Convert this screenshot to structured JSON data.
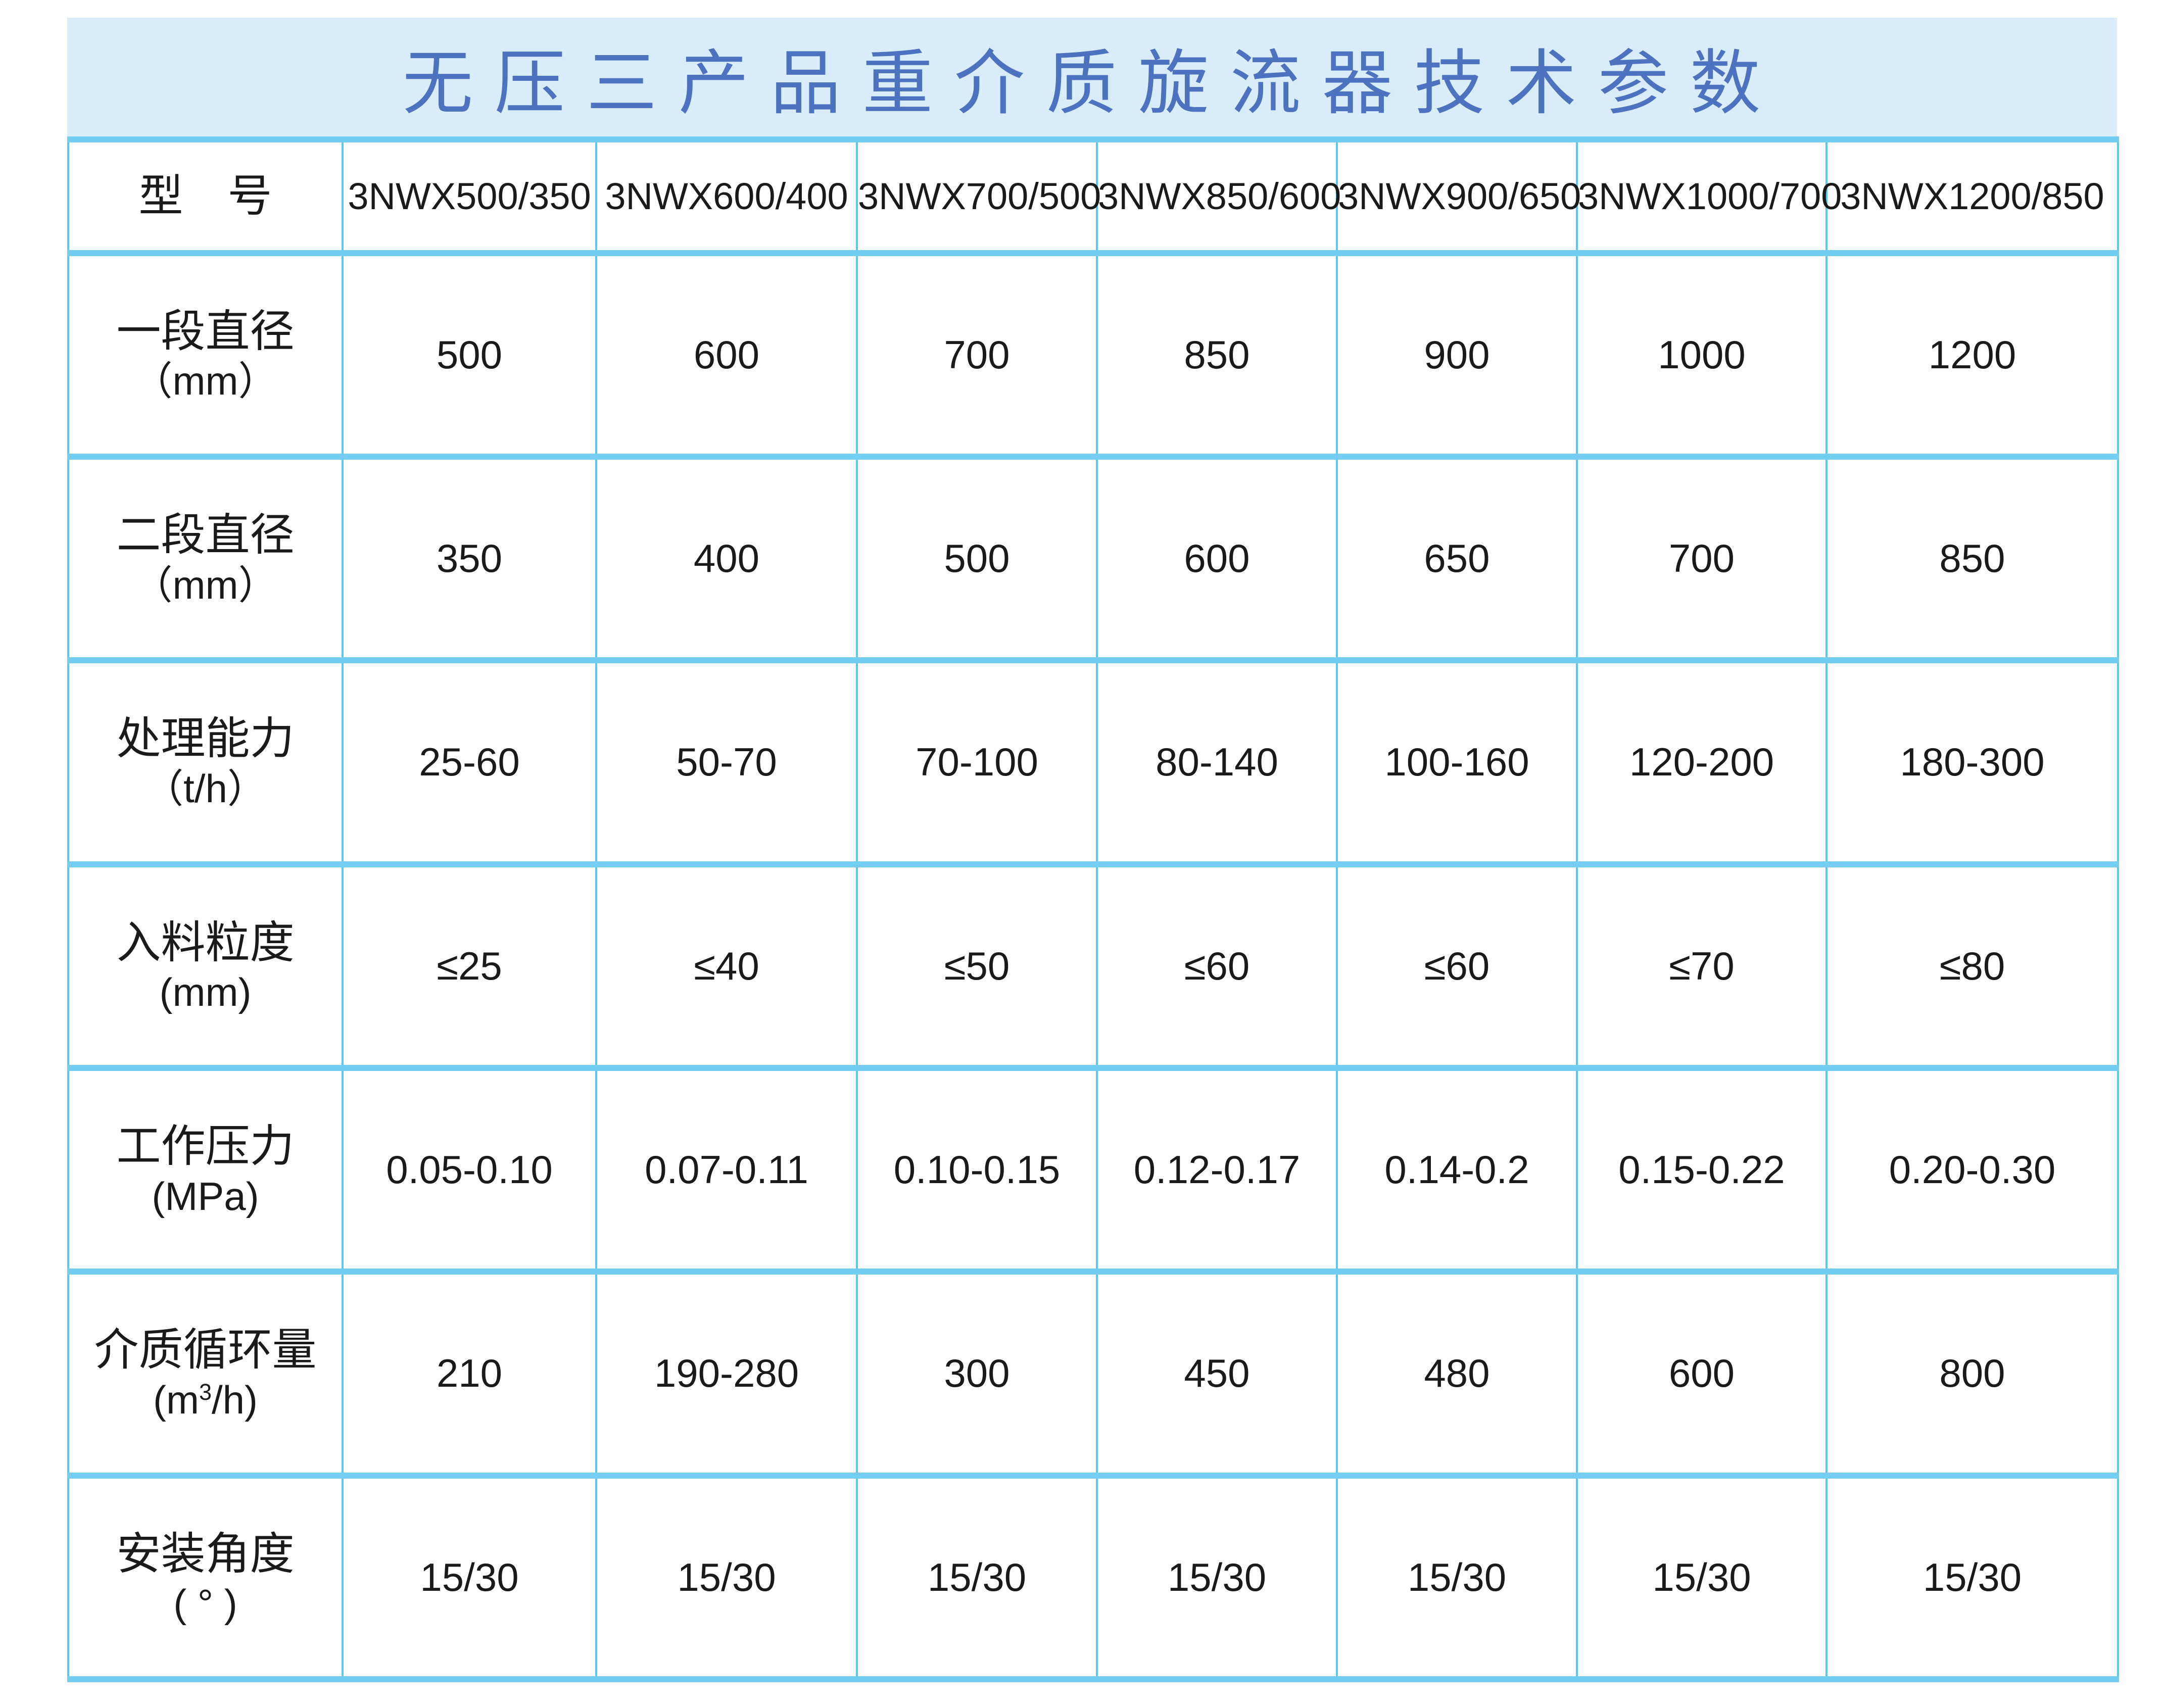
{
  "title": "无压三产品重介质旋流器技术参数",
  "colors": {
    "title": "#4d72bf",
    "title_band": "#d8edf9",
    "border": "#5cc8f0"
  },
  "table": {
    "header": {
      "label": "型　号",
      "models": [
        "3NWX500/350",
        "3NWX600/400",
        "3NWX700/500",
        "3NWX850/600",
        "3NWX900/650",
        "3NWX1000/700",
        "3NWX1200/850"
      ]
    },
    "rows": [
      {
        "label": "一段直径",
        "unit": "（mm）",
        "values": [
          "500",
          "600",
          "700",
          "850",
          "900",
          "1000",
          "1200"
        ]
      },
      {
        "label": "二段直径",
        "unit": "（mm）",
        "values": [
          "350",
          "400",
          "500",
          "600",
          "650",
          "700",
          "850"
        ]
      },
      {
        "label": "处理能力",
        "unit": "（t/h）",
        "values": [
          "25-60",
          "50-70",
          "70-100",
          "80-140",
          "100-160",
          "120-200",
          "180-300"
        ]
      },
      {
        "label": "入料粒度",
        "unit": "(mm)",
        "values": [
          "≤25",
          "≤40",
          "≤50",
          "≤60",
          "≤60",
          "≤70",
          "≤80"
        ]
      },
      {
        "label": "工作压力",
        "unit": "(MPa)",
        "values": [
          "0.05-0.10",
          "0.07-0.11",
          "0.10-0.15",
          "0.12-0.17",
          "0.14-0.2",
          "0.15-0.22",
          "0.20-0.30"
        ]
      },
      {
        "label": "介质循环量",
        "unit_pre": "(m",
        "unit_sup": "3",
        "unit_post": "/h)",
        "values": [
          "210",
          "190-280",
          "300",
          "450",
          "480",
          "600",
          "800"
        ]
      },
      {
        "label": "安装角度",
        "unit": "( ° )",
        "values": [
          "15/30",
          "15/30",
          "15/30",
          "15/30",
          "15/30",
          "15/30",
          "15/30"
        ]
      }
    ]
  }
}
